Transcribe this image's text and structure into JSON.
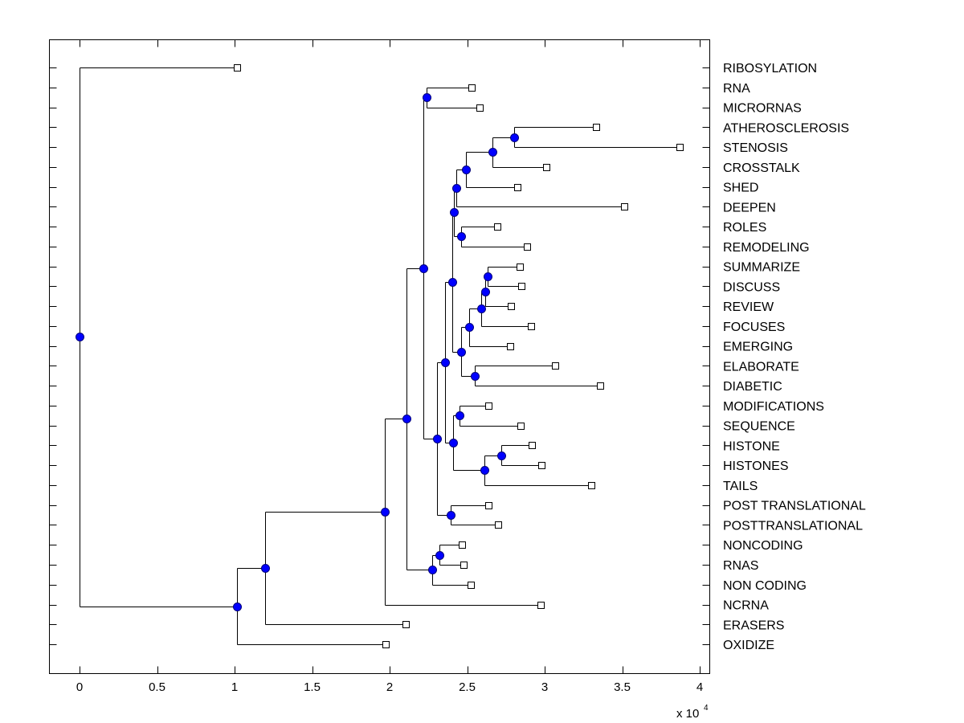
{
  "chart_data": {
    "type": "dendrogram",
    "title": "",
    "xlabel": "",
    "ylabel": "",
    "x_scale_label": "x 10",
    "x_scale_exponent": "4",
    "xlim": [
      -0.2,
      4.05
    ],
    "x_ticks": [
      0,
      0.5,
      1,
      1.5,
      2,
      2.5,
      3,
      3.5,
      4
    ],
    "x_tick_labels": [
      "0",
      "0.5",
      "1",
      "1.5",
      "2",
      "2.5",
      "3",
      "3.5",
      "4"
    ],
    "grid": false,
    "colors": {
      "internal_node": "#0000ff",
      "leaf_marker": "#ffffff",
      "edge": "#000000"
    },
    "leaves": [
      {
        "id": "RIBOSYLATION",
        "label": "RIBOSYLATION",
        "x": 1.016
      },
      {
        "id": "RNA",
        "label": "RNA",
        "x": 2.528
      },
      {
        "id": "MICRORNAS",
        "label": "MICRORNAS",
        "x": 2.58
      },
      {
        "id": "ATHEROSCLEROSIS",
        "label": "ATHEROSCLEROSIS",
        "x": 3.332
      },
      {
        "id": "STENOSIS",
        "label": "STENOSIS",
        "x": 3.87
      },
      {
        "id": "CROSSTALK",
        "label": "CROSSTALK",
        "x": 3.01
      },
      {
        "id": "SHED",
        "label": "SHED",
        "x": 2.824
      },
      {
        "id": "DEEPEN",
        "label": "DEEPEN",
        "x": 3.513
      },
      {
        "id": "ROLES",
        "label": "ROLES",
        "x": 2.694
      },
      {
        "id": "REMODELING",
        "label": "REMODELING",
        "x": 2.886
      },
      {
        "id": "SUMMARIZE",
        "label": "SUMMARIZE",
        "x": 2.839
      },
      {
        "id": "DISCUSS",
        "label": "DISCUSS",
        "x": 2.85
      },
      {
        "id": "REVIEW",
        "label": "REVIEW",
        "x": 2.782
      },
      {
        "id": "FOCUSES",
        "label": "FOCUSES",
        "x": 2.912
      },
      {
        "id": "EMERGING",
        "label": "EMERGING",
        "x": 2.777
      },
      {
        "id": "ELABORATE",
        "label": "ELABORATE",
        "x": 3.067
      },
      {
        "id": "DIABETIC",
        "label": "DIABETIC",
        "x": 3.358
      },
      {
        "id": "MODIFICATIONS",
        "label": "MODIFICATIONS",
        "x": 2.637
      },
      {
        "id": "SEQUENCE",
        "label": "SEQUENCE",
        "x": 2.845
      },
      {
        "id": "HISTONE",
        "label": "HISTONE",
        "x": 2.917
      },
      {
        "id": "HISTONES",
        "label": "HISTONES",
        "x": 2.979
      },
      {
        "id": "TAILS",
        "label": "TAILS",
        "x": 3.301
      },
      {
        "id": "POST_TRANSLATIONAL",
        "label": "POST TRANSLATIONAL",
        "x": 2.637
      },
      {
        "id": "POSTTRANSLATIONAL",
        "label": "POSTTRANSLATIONAL",
        "x": 2.699
      },
      {
        "id": "NONCODING",
        "label": "NONCODING",
        "x": 2.466
      },
      {
        "id": "RNAS",
        "label": "RNAS",
        "x": 2.477
      },
      {
        "id": "NON_CODING",
        "label": "NON CODING",
        "x": 2.523
      },
      {
        "id": "NCRNA",
        "label": "NCRNA",
        "x": 2.974
      },
      {
        "id": "ERASERS",
        "label": "ERASERS",
        "x": 2.104
      },
      {
        "id": "OXIDIZE",
        "label": "OXIDIZE",
        "x": 1.974
      }
    ],
    "internal_nodes": [
      {
        "id": "n_AS",
        "x": 2.803,
        "children": [
          "ATHEROSCLEROSIS",
          "STENOSIS"
        ]
      },
      {
        "id": "n_ASC",
        "x": 2.663,
        "children": [
          "n_AS",
          "CROSSTALK"
        ]
      },
      {
        "id": "n_ASCS",
        "x": 2.492,
        "children": [
          "n_ASC",
          "SHED"
        ]
      },
      {
        "id": "n_ASCSD",
        "x": 2.43,
        "children": [
          "n_ASCS",
          "DEEPEN"
        ]
      },
      {
        "id": "n_RR",
        "x": 2.461,
        "children": [
          "ROLES",
          "REMODELING"
        ]
      },
      {
        "id": "n_G1",
        "x": 2.415,
        "children": [
          "n_ASCSD",
          "n_RR"
        ]
      },
      {
        "id": "n_SD",
        "x": 2.632,
        "children": [
          "SUMMARIZE",
          "DISCUSS"
        ]
      },
      {
        "id": "n_SDR",
        "x": 2.617,
        "children": [
          "n_SD",
          "REVIEW"
        ]
      },
      {
        "id": "n_SDRF",
        "x": 2.591,
        "children": [
          "n_SDR",
          "FOCUSES"
        ]
      },
      {
        "id": "n_SDRFE",
        "x": 2.513,
        "children": [
          "n_SDRF",
          "EMERGING"
        ]
      },
      {
        "id": "n_ED",
        "x": 2.549,
        "children": [
          "ELABORATE",
          "DIABETIC"
        ]
      },
      {
        "id": "n_G2",
        "x": 2.461,
        "children": [
          "n_SDRFE",
          "n_ED"
        ]
      },
      {
        "id": "n_G",
        "x": 2.404,
        "children": [
          "n_G1",
          "n_G2"
        ]
      },
      {
        "id": "n_MS",
        "x": 2.451,
        "children": [
          "MODIFICATIONS",
          "SEQUENCE"
        ]
      },
      {
        "id": "n_HH",
        "x": 2.72,
        "children": [
          "HISTONE",
          "HISTONES"
        ]
      },
      {
        "id": "n_HHT",
        "x": 2.611,
        "children": [
          "n_HH",
          "TAILS"
        ]
      },
      {
        "id": "n_MSH",
        "x": 2.409,
        "children": [
          "n_MS",
          "n_HHT"
        ]
      },
      {
        "id": "n_H",
        "x": 2.358,
        "children": [
          "n_G",
          "n_MSH"
        ]
      },
      {
        "id": "n_PT",
        "x": 2.394,
        "children": [
          "POST_TRANSLATIONAL",
          "POSTTRANSLATIONAL"
        ]
      },
      {
        "id": "n_I",
        "x": 2.306,
        "children": [
          "n_H",
          "n_PT"
        ]
      },
      {
        "id": "n_RM",
        "x": 2.238,
        "children": [
          "RNA",
          "MICRORNAS"
        ]
      },
      {
        "id": "n_TOP",
        "x": 2.218,
        "children": [
          "n_RM",
          "n_I"
        ]
      },
      {
        "id": "n_NR",
        "x": 2.321,
        "children": [
          "NONCODING",
          "RNAS"
        ]
      },
      {
        "id": "n_NRN",
        "x": 2.275,
        "children": [
          "n_NR",
          "NON_CODING"
        ]
      },
      {
        "id": "n_J",
        "x": 2.109,
        "children": [
          "n_TOP",
          "n_NRN"
        ]
      },
      {
        "id": "n_K",
        "x": 1.969,
        "children": [
          "n_J",
          "NCRNA"
        ]
      },
      {
        "id": "n_L",
        "x": 1.197,
        "children": [
          "n_K",
          "ERASERS"
        ]
      },
      {
        "id": "n_M",
        "x": 1.016,
        "children": [
          "n_L",
          "OXIDIZE"
        ]
      },
      {
        "id": "root",
        "x": 0.0,
        "children": [
          "RIBOSYLATION",
          "n_M"
        ]
      }
    ]
  }
}
